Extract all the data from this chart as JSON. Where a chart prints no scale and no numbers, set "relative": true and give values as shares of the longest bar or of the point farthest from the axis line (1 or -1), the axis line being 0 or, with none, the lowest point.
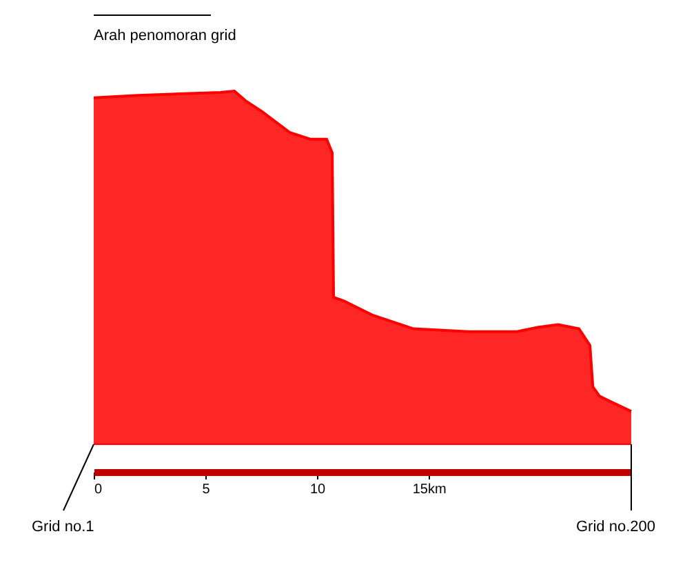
{
  "chart_data": {
    "type": "area",
    "relative": true,
    "x": [
      0,
      1.98,
      3.83,
      5.68,
      6.3,
      6.79,
      7.53,
      8.77,
      9.69,
      10.43,
      10.68,
      10.74,
      11.23,
      12.47,
      14.32,
      16.79,
      18.95,
      19.88,
      20.8,
      21.73,
      22.22,
      22.35,
      22.65,
      23.27,
      24.07
    ],
    "series": [
      {
        "color": "#ff0000",
        "values": [
          0.981,
          0.988,
          0.992,
          0.996,
          1,
          0.973,
          0.942,
          0.883,
          0.864,
          0.864,
          0.825,
          0.416,
          0.405,
          0.366,
          0.327,
          0.319,
          0.319,
          0.331,
          0.339,
          0.327,
          0.28,
          0.163,
          0.136,
          0.117,
          0.093
        ]
      }
    ],
    "xlim": [
      0,
      24.07
    ],
    "xticks": [
      0,
      5,
      10,
      {
        "value": 15,
        "label": "15km"
      }
    ],
    "annotations": [
      "Arah penomoran grid",
      "Grid no.1",
      "Grid no.200"
    ],
    "grid": false
  }
}
